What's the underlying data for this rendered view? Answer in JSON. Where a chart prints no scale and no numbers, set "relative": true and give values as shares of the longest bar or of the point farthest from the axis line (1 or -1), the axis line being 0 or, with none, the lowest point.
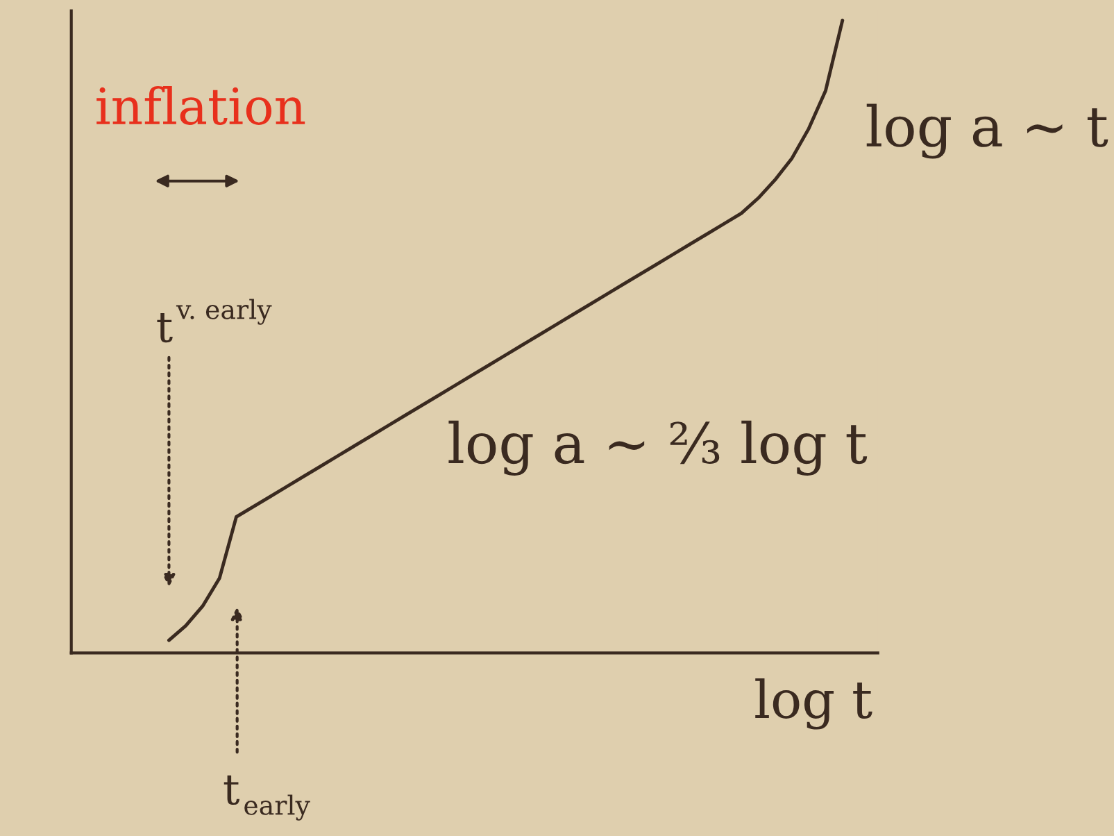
{
  "chart_data": {
    "type": "line",
    "relative": true,
    "xlabel": "log t",
    "color": "#3a2a20",
    "categories": [
      null,
      null,
      null,
      null,
      null,
      null,
      null,
      null,
      null,
      null,
      null,
      null,
      null,
      null,
      null,
      null,
      null,
      null,
      null,
      null,
      null,
      null,
      null,
      null,
      null,
      null,
      null,
      null,
      null,
      null,
      null,
      null,
      null,
      null,
      null,
      null,
      null,
      null,
      null,
      null,
      null
    ],
    "values": [
      0.02,
      0.043,
      0.074,
      0.118,
      0.215,
      0.231,
      0.247,
      0.263,
      0.279,
      0.295,
      0.311,
      0.327,
      0.343,
      0.359,
      0.375,
      0.391,
      0.407,
      0.423,
      0.439,
      0.455,
      0.471,
      0.487,
      0.503,
      0.519,
      0.535,
      0.551,
      0.567,
      0.583,
      0.599,
      0.615,
      0.631,
      0.647,
      0.663,
      0.679,
      0.695,
      0.719,
      0.748,
      0.782,
      0.829,
      0.889,
      1.0
    ],
    "annotations": [
      "inflation",
      "t$^{v. early}$",
      "t$_{early}$",
      "log a ∼ ⅔ log t",
      "log a ∼ t"
    ],
    "grid": false,
    "legend": false,
    "marker": "none",
    "line_style": "solid"
  }
}
